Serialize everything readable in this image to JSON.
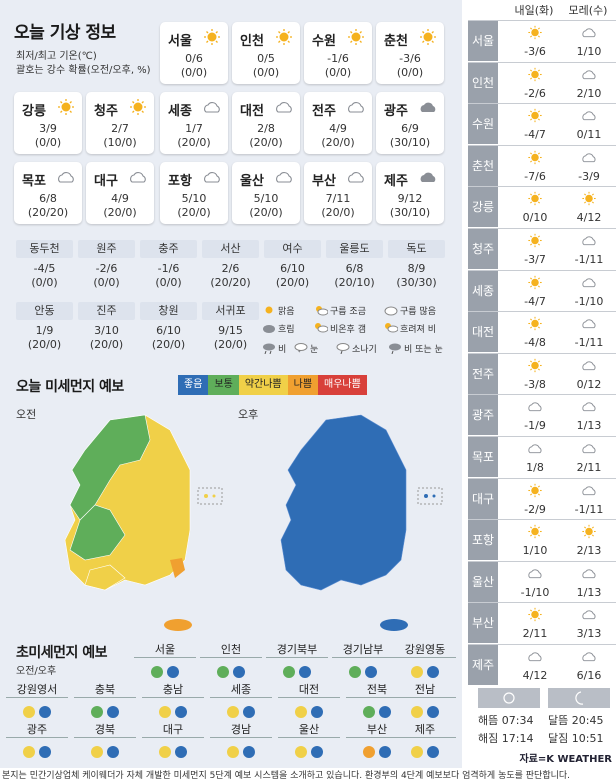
{
  "title": "오늘 기상 정보",
  "subtitle1": "최저/최고 기온(℃)",
  "subtitle2": "괄호는 강수 확률(오전/오후, %)",
  "cities": [
    {
      "name": "서울",
      "icon": "sun-icon",
      "temp": "0/6",
      "prob": "(0/0)"
    },
    {
      "name": "인천",
      "icon": "sun-icon",
      "temp": "0/5",
      "prob": "(0/0)"
    },
    {
      "name": "수원",
      "icon": "sun-icon",
      "temp": "-1/6",
      "prob": "(0/0)"
    },
    {
      "name": "춘천",
      "icon": "sun-icon",
      "temp": "-3/6",
      "prob": "(0/0)"
    },
    {
      "name": "강릉",
      "icon": "sun-icon",
      "temp": "3/9",
      "prob": "(0/0)"
    },
    {
      "name": "청주",
      "icon": "sun-icon",
      "temp": "2/7",
      "prob": "(10/0)"
    },
    {
      "name": "세종",
      "icon": "cloud-icon",
      "temp": "1/7",
      "prob": "(20/0)"
    },
    {
      "name": "대전",
      "icon": "cloud-icon",
      "temp": "2/8",
      "prob": "(20/0)"
    },
    {
      "name": "전주",
      "icon": "cloud-icon",
      "temp": "4/9",
      "prob": "(20/0)"
    },
    {
      "name": "광주",
      "icon": "dark-cloud-icon",
      "temp": "6/9",
      "prob": "(30/10)"
    },
    {
      "name": "목포",
      "icon": "cloud-icon",
      "temp": "6/8",
      "prob": "(20/20)"
    },
    {
      "name": "대구",
      "icon": "cloud-icon",
      "temp": "4/9",
      "prob": "(20/0)"
    },
    {
      "name": "포항",
      "icon": "cloud-icon",
      "temp": "5/10",
      "prob": "(20/0)"
    },
    {
      "name": "울산",
      "icon": "cloud-icon",
      "temp": "5/10",
      "prob": "(20/0)"
    },
    {
      "name": "부산",
      "icon": "cloud-icon",
      "temp": "7/11",
      "prob": "(20/0)"
    },
    {
      "name": "제주",
      "icon": "dark-cloud-icon",
      "temp": "9/12",
      "prob": "(30/10)"
    }
  ],
  "grid1": [
    {
      "name": "동두천",
      "temp": "-4/5",
      "prob": "(0/0)"
    },
    {
      "name": "원주",
      "temp": "-2/6",
      "prob": "(0/0)"
    },
    {
      "name": "충주",
      "temp": "-1/6",
      "prob": "(0/0)"
    },
    {
      "name": "서산",
      "temp": "2/6",
      "prob": "(20/20)"
    },
    {
      "name": "여수",
      "temp": "6/10",
      "prob": "(20/0)"
    },
    {
      "name": "울릉도",
      "temp": "6/8",
      "prob": "(20/10)"
    },
    {
      "name": "독도",
      "temp": "8/9",
      "prob": "(30/30)"
    }
  ],
  "grid2": [
    {
      "name": "안동",
      "temp": "1/9",
      "prob": "(20/0)"
    },
    {
      "name": "진주",
      "temp": "3/10",
      "prob": "(20/0)"
    },
    {
      "name": "창원",
      "temp": "6/10",
      "prob": "(20/0)"
    },
    {
      "name": "서귀포",
      "temp": "9/15",
      "prob": "(20/0)"
    }
  ],
  "legend": {
    "sunny": "맑음",
    "few_clouds": "구름 조금",
    "many_clouds": "구름 많음",
    "cloudy": "흐림",
    "rain_after_clear": "비온후 갬",
    "cloudy_rain": "흐려져 비",
    "rain": "비",
    "snow": "눈",
    "shower": "소나기",
    "rain_or_snow": "비 또는 눈"
  },
  "dust_title": "오늘 미세먼지 예보",
  "scale": [
    {
      "label": "좋음",
      "color": "#2f6db5"
    },
    {
      "label": "보통",
      "color": "#5fae5a"
    },
    {
      "label": "약간나쁨",
      "color": "#f0d048"
    },
    {
      "label": "나쁨",
      "color": "#f0a030"
    },
    {
      "label": "매우나쁨",
      "color": "#d8403a"
    }
  ],
  "am_label": "오전",
  "pm_label": "오후",
  "fine_title": "초미세먼지 예보",
  "fine_sub": "오전/오후",
  "fine": [
    {
      "name": "서울",
      "c": [
        "#5fae5a",
        "#2f6db5"
      ]
    },
    {
      "name": "인천",
      "c": [
        "#5fae5a",
        "#2f6db5"
      ]
    },
    {
      "name": "경기북부",
      "c": [
        "#5fae5a",
        "#2f6db5"
      ]
    },
    {
      "name": "경기남부",
      "c": [
        "#5fae5a",
        "#2f6db5"
      ]
    },
    {
      "name": "강원영동",
      "c": [
        "#f0d048",
        "#2f6db5"
      ]
    },
    {
      "name": "강원영서",
      "c": [
        "#f0d048",
        "#2f6db5"
      ]
    },
    {
      "name": "충북",
      "c": [
        "#5fae5a",
        "#2f6db5"
      ]
    },
    {
      "name": "충남",
      "c": [
        "#f0d048",
        "#2f6db5"
      ]
    },
    {
      "name": "세종",
      "c": [
        "#f0d048",
        "#2f6db5"
      ]
    },
    {
      "name": "대전",
      "c": [
        "#f0d048",
        "#2f6db5"
      ]
    },
    {
      "name": "전북",
      "c": [
        "#5fae5a",
        "#2f6db5"
      ]
    },
    {
      "name": "전남",
      "c": [
        "#f0d048",
        "#2f6db5"
      ]
    },
    {
      "name": "광주",
      "c": [
        "#f0d048",
        "#2f6db5"
      ]
    },
    {
      "name": "경북",
      "c": [
        "#f0d048",
        "#2f6db5"
      ]
    },
    {
      "name": "대구",
      "c": [
        "#f0d048",
        "#2f6db5"
      ]
    },
    {
      "name": "경남",
      "c": [
        "#f0d048",
        "#2f6db5"
      ]
    },
    {
      "name": "울산",
      "c": [
        "#f0d048",
        "#2f6db5"
      ]
    },
    {
      "name": "부산",
      "c": [
        "#f0a030",
        "#2f6db5"
      ]
    },
    {
      "name": "제주",
      "c": [
        "#f0d048",
        "#2f6db5"
      ]
    }
  ],
  "right": {
    "tomorrow": "내일(화)",
    "dayafter": "모레(수)",
    "rows": [
      {
        "name": "서울",
        "i1": "sun-icon",
        "t1": "-3/6",
        "i2": "cloud-icon",
        "t2": "1/10"
      },
      {
        "name": "인천",
        "i1": "sun-icon",
        "t1": "-2/6",
        "i2": "cloud-icon",
        "t2": "2/10"
      },
      {
        "name": "수원",
        "i1": "sun-icon",
        "t1": "-4/7",
        "i2": "cloud-icon",
        "t2": "0/11"
      },
      {
        "name": "춘천",
        "i1": "sun-icon",
        "t1": "-7/6",
        "i2": "cloud-icon",
        "t2": "-3/9"
      },
      {
        "name": "강릉",
        "i1": "sun-icon",
        "t1": "0/10",
        "i2": "sun-icon",
        "t2": "4/12"
      },
      {
        "name": "청주",
        "i1": "sun-icon",
        "t1": "-3/7",
        "i2": "cloud-icon",
        "t2": "-1/11"
      },
      {
        "name": "세종",
        "i1": "sun-icon",
        "t1": "-4/7",
        "i2": "cloud-icon",
        "t2": "-1/10"
      },
      {
        "name": "대전",
        "i1": "sun-icon",
        "t1": "-4/8",
        "i2": "cloud-icon",
        "t2": "-1/11"
      },
      {
        "name": "전주",
        "i1": "sun-icon",
        "t1": "-3/8",
        "i2": "cloud-icon",
        "t2": "0/12"
      },
      {
        "name": "광주",
        "i1": "cloud-icon",
        "t1": "-1/9",
        "i2": "cloud-icon",
        "t2": "1/13"
      },
      {
        "name": "목포",
        "i1": "cloud-icon",
        "t1": "1/8",
        "i2": "cloud-icon",
        "t2": "2/11"
      },
      {
        "name": "대구",
        "i1": "sun-icon",
        "t1": "-2/9",
        "i2": "cloud-icon",
        "t2": "-1/11"
      },
      {
        "name": "포항",
        "i1": "sun-icon",
        "t1": "1/10",
        "i2": "sun-icon",
        "t2": "2/13"
      },
      {
        "name": "울산",
        "i1": "cloud-icon",
        "t1": "-1/10",
        "i2": "cloud-icon",
        "t2": "1/13"
      },
      {
        "name": "부산",
        "i1": "sun-icon",
        "t1": "2/11",
        "i2": "cloud-icon",
        "t2": "3/13"
      },
      {
        "name": "제주",
        "i1": "cloud-icon",
        "t1": "4/12",
        "i2": "cloud-icon",
        "t2": "6/16"
      }
    ],
    "sunrise": "해뜸 07:34",
    "sunset": "해짐 17:14",
    "moonrise": "달뜸 20:45",
    "moonset": "달짐 10:51",
    "source_prefix": "자료=",
    "source": "K WEATHER"
  },
  "footer": "본지는 민간기상업체 케이웨더가 자체 개발한 미세먼지 5단계 예보 시스템을 소개하고 있습니다. 환경부의 4단계 예보보다 엄격하게 농도를 판단합니다."
}
